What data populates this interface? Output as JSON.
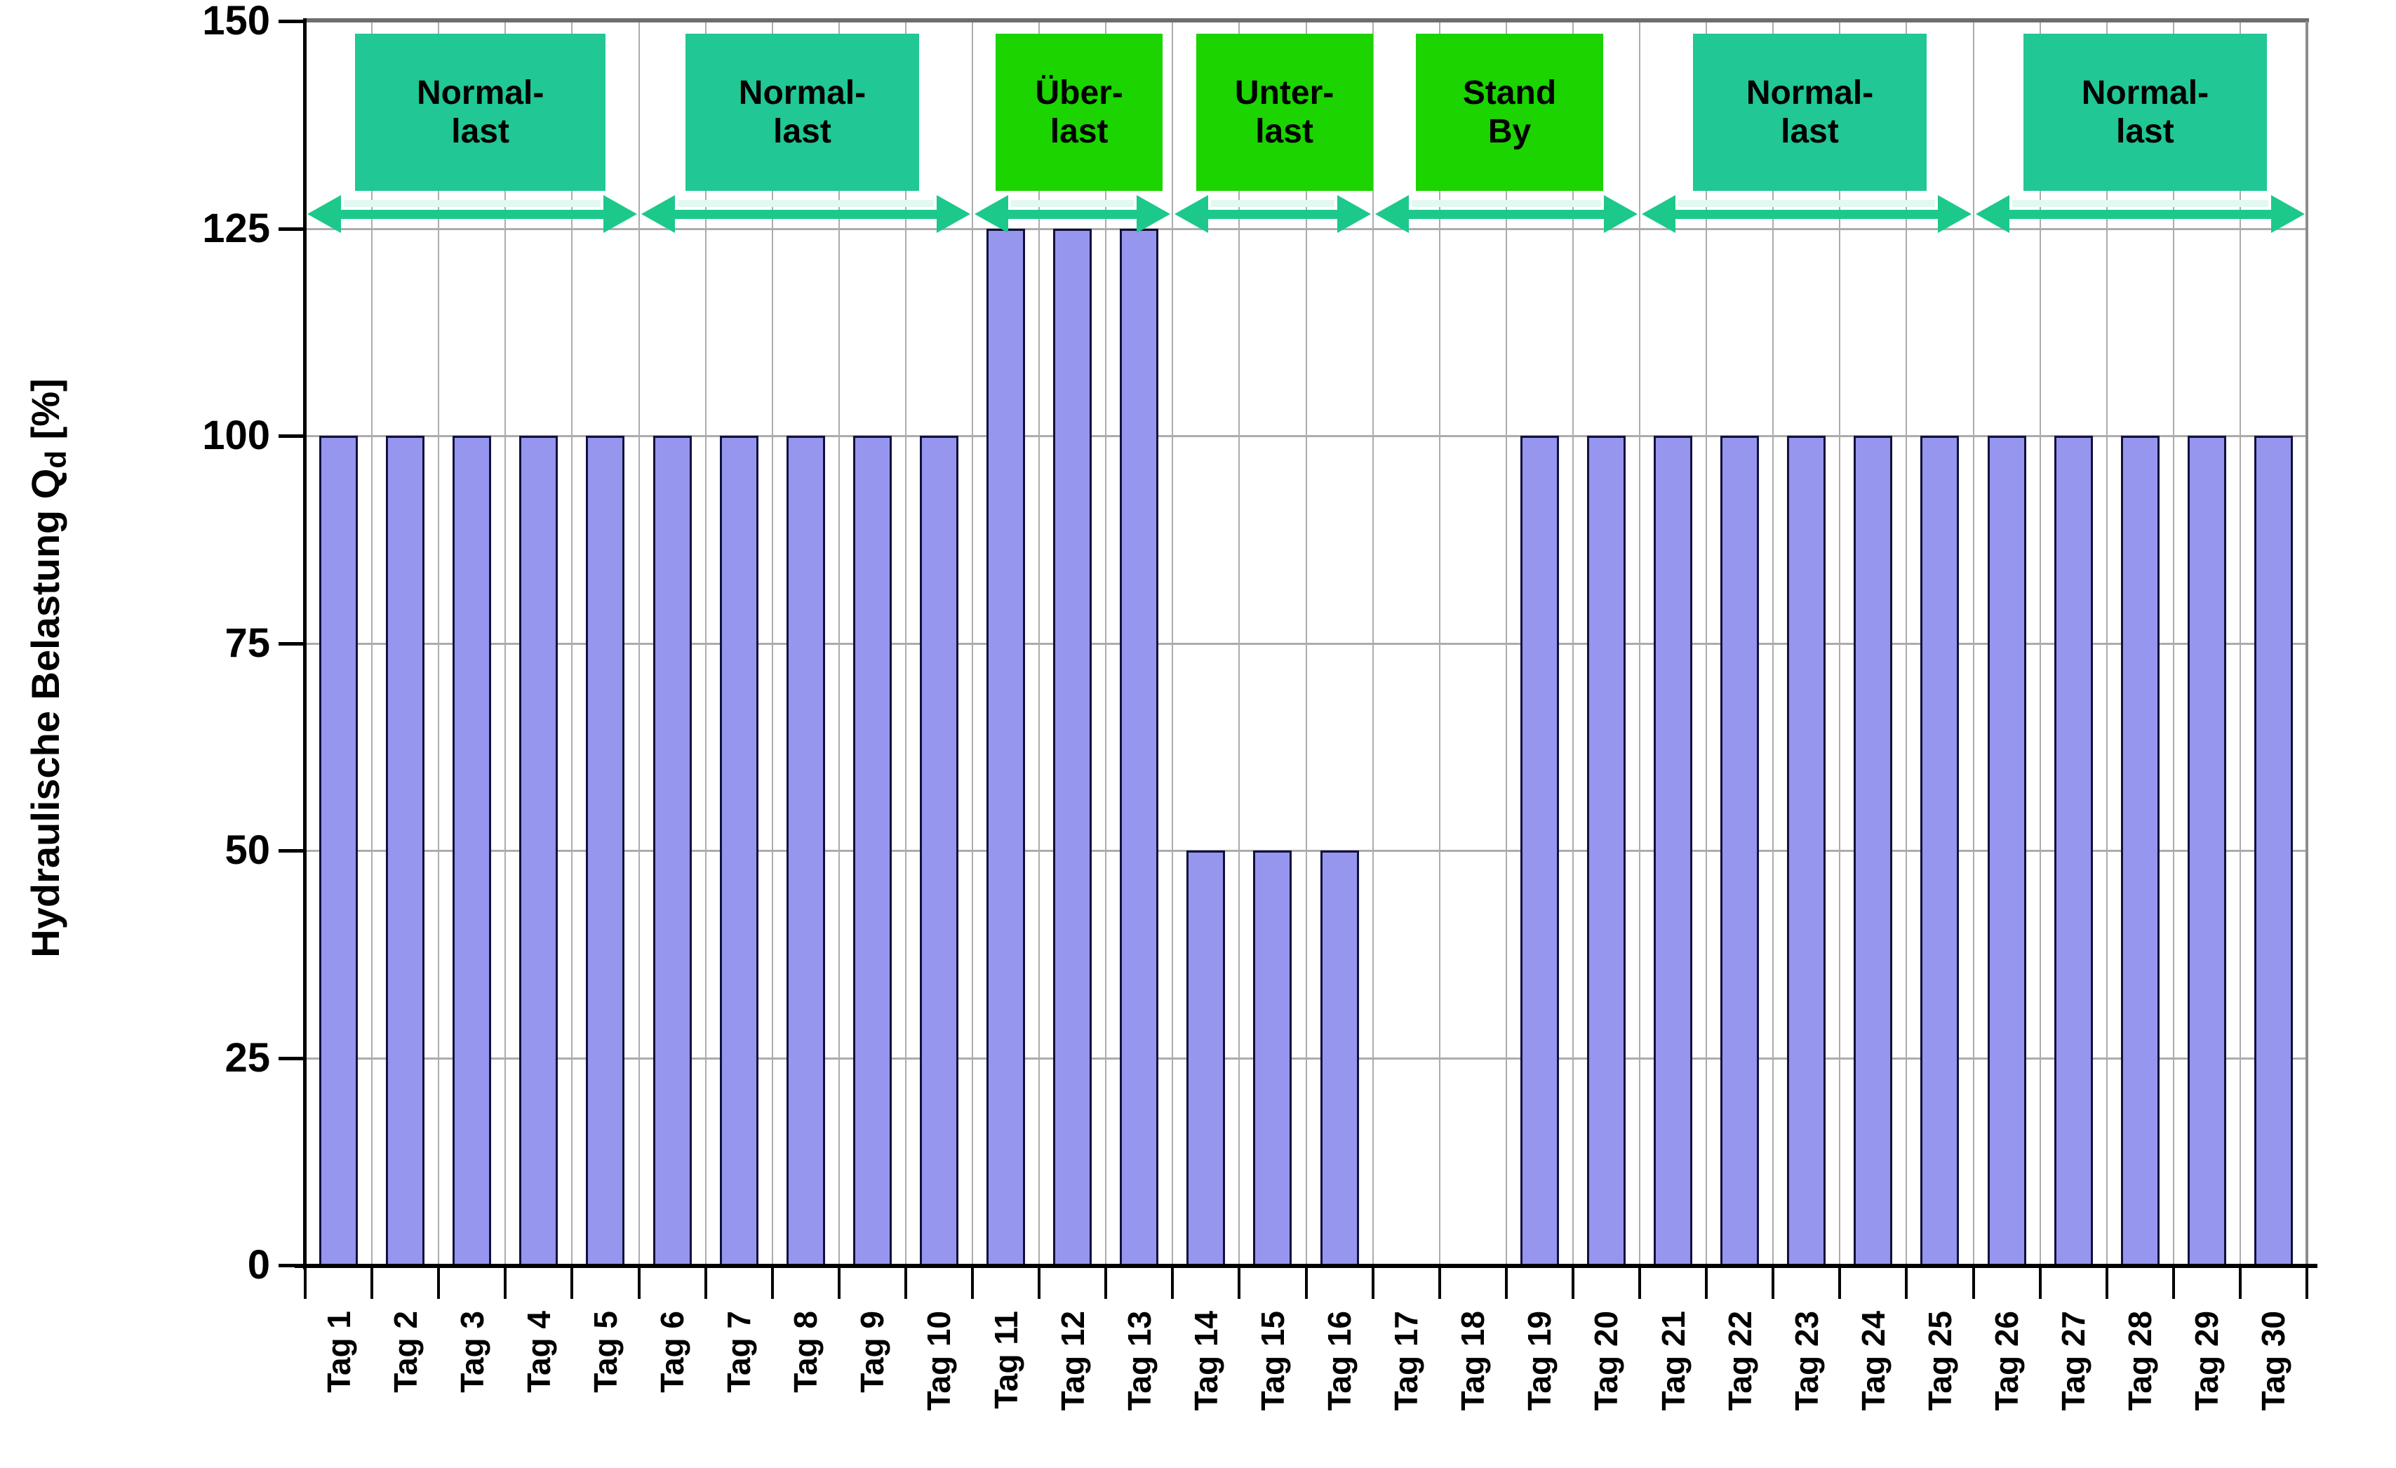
{
  "chart_data": {
    "type": "bar",
    "title": "",
    "xlabel": "",
    "ylabel": "Hydraulische Belastung Qd [%]",
    "ylabel_main": "Hydraulische Belastung Q",
    "ylabel_sub": "d",
    "ylabel_unit": " [%]",
    "ylim": [
      0,
      150
    ],
    "yticks": [
      0,
      25,
      50,
      75,
      100,
      125,
      150
    ],
    "grid": true,
    "legend_position": "none",
    "categories": [
      "Tag 1",
      "Tag 2",
      "Tag 3",
      "Tag 4",
      "Tag 5",
      "Tag 6",
      "Tag 7",
      "Tag 8",
      "Tag 9",
      "Tag 10",
      "Tag 11",
      "Tag 12",
      "Tag 13",
      "Tag 14",
      "Tag 15",
      "Tag 16",
      "Tag 17",
      "Tag 18",
      "Tag 19",
      "Tag 20",
      "Tag 21",
      "Tag 22",
      "Tag 23",
      "Tag 24",
      "Tag 25",
      "Tag 26",
      "Tag 27",
      "Tag 28",
      "Tag 29",
      "Tag 30"
    ],
    "values": [
      100,
      100,
      100,
      100,
      100,
      100,
      100,
      100,
      100,
      100,
      125,
      125,
      125,
      50,
      50,
      50,
      0,
      0,
      100,
      100,
      100,
      100,
      100,
      100,
      100,
      100,
      100,
      100,
      100,
      100
    ],
    "phases": [
      {
        "label_line1": "Normal-",
        "label_line2": "last",
        "day_start": 0,
        "day_end": 5,
        "box_day_start": 0.75,
        "box_day_end": 4.5,
        "color_key": "teal"
      },
      {
        "label_line1": "Normal-",
        "label_line2": "last",
        "day_start": 5,
        "day_end": 10,
        "box_day_start": 5.7,
        "box_day_end": 9.2,
        "color_key": "teal"
      },
      {
        "label_line1": "Über-",
        "label_line2": "last",
        "day_start": 10,
        "day_end": 13,
        "box_day_start": 10.35,
        "box_day_end": 12.85,
        "color_key": "green"
      },
      {
        "label_line1": "Unter-",
        "label_line2": "last",
        "day_start": 13,
        "day_end": 16,
        "box_day_start": 13.35,
        "box_day_end": 16.0,
        "color_key": "green"
      },
      {
        "label_line1": "Stand",
        "label_line2": "By",
        "day_start": 16,
        "day_end": 20,
        "box_day_start": 16.65,
        "box_day_end": 19.45,
        "color_key": "green"
      },
      {
        "label_line1": "Normal-",
        "label_line2": "last",
        "day_start": 20,
        "day_end": 25,
        "box_day_start": 20.8,
        "box_day_end": 24.3,
        "color_key": "teal"
      },
      {
        "label_line1": "Normal-",
        "label_line2": "last",
        "day_start": 25,
        "day_end": 30,
        "box_day_start": 25.75,
        "box_day_end": 29.4,
        "color_key": "teal"
      }
    ],
    "colors": {
      "teal": "#21C795",
      "green": "#1BD400",
      "bar_fill": "#9696EE",
      "bar_border": "#11113C",
      "grid": "#ACACAC",
      "axis": "#000000",
      "top_border": "#6E6E6E",
      "right_border": "#8C8C8C",
      "arrow": "#1CC98B",
      "arrow_halo": "#E2F9F1",
      "background": "#FFFFFF",
      "text": "#000000"
    }
  }
}
